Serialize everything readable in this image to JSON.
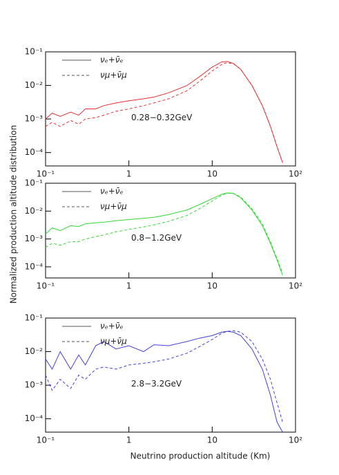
{
  "chart_data": [
    {
      "type": "line",
      "ylabel": "Normalized production altitude distribution",
      "annotation": "0.28−0.32GeV",
      "x": [
        0.1,
        0.12,
        0.15,
        0.2,
        0.25,
        0.3,
        0.4,
        0.5,
        0.7,
        1,
        1.5,
        2,
        3,
        5,
        7,
        10,
        13,
        15,
        18,
        22,
        30,
        40,
        50,
        60,
        70
      ],
      "series": [
        {
          "name": "νₑ+ν̄ₑ",
          "color": "#e83030",
          "linestyle": "solid",
          "values": [
            0.001,
            0.0015,
            0.0012,
            0.0016,
            0.0013,
            0.002,
            0.002,
            0.0025,
            0.003,
            0.0035,
            0.004,
            0.0045,
            0.006,
            0.01,
            0.018,
            0.035,
            0.05,
            0.052,
            0.045,
            0.03,
            0.01,
            0.0025,
            0.0006,
            0.00015,
            5e-05
          ]
        },
        {
          "name": "νμ+ν̄μ",
          "color": "#e83030",
          "linestyle": "dashed",
          "values": [
            0.0006,
            0.0008,
            0.0006,
            0.0009,
            0.0007,
            0.001,
            0.0011,
            0.0013,
            0.0017,
            0.002,
            0.0025,
            0.003,
            0.004,
            0.007,
            0.013,
            0.027,
            0.042,
            0.048,
            0.044,
            0.03,
            0.01,
            0.0025,
            0.0006,
            0.00015,
            5e-05
          ]
        }
      ],
      "xlim": [
        0.1,
        100
      ],
      "ylim": [
        4e-05,
        0.1
      ],
      "log_x": true,
      "log_y": true,
      "legend": "upper left",
      "xticks": [
        {
          "value": 0.1,
          "label": "10⁻¹"
        },
        1,
        10,
        {
          "value": 100,
          "label": "10²"
        }
      ],
      "yticks": [
        {
          "value": 0.1,
          "label": "10⁻¹"
        },
        {
          "value": 0.01,
          "label": "10⁻²"
        },
        {
          "value": 0.001,
          "label": "10⁻³"
        },
        {
          "value": 0.0001,
          "label": "10⁻⁴"
        }
      ]
    },
    {
      "type": "line",
      "annotation": "0.8−1.2GeV",
      "x": [
        0.1,
        0.12,
        0.15,
        0.2,
        0.25,
        0.3,
        0.4,
        0.5,
        0.7,
        1,
        1.5,
        2,
        3,
        5,
        7,
        10,
        13,
        15,
        18,
        22,
        30,
        40,
        50,
        60,
        70
      ],
      "series": [
        {
          "name": "νₑ+ν̄ₑ",
          "color": "#30d830",
          "linestyle": "solid",
          "values": [
            0.0015,
            0.0025,
            0.002,
            0.003,
            0.0028,
            0.0035,
            0.0038,
            0.004,
            0.0045,
            0.005,
            0.0055,
            0.006,
            0.0075,
            0.011,
            0.017,
            0.028,
            0.04,
            0.045,
            0.043,
            0.03,
            0.011,
            0.003,
            0.0007,
            0.00018,
            5e-05
          ]
        },
        {
          "name": "νμ+ν̄μ",
          "color": "#30d830",
          "linestyle": "dashed",
          "values": [
            0.0005,
            0.0007,
            0.0006,
            0.0008,
            0.0008,
            0.001,
            0.0012,
            0.0014,
            0.0018,
            0.0022,
            0.0027,
            0.0032,
            0.0043,
            0.007,
            0.012,
            0.023,
            0.037,
            0.044,
            0.043,
            0.032,
            0.012,
            0.0035,
            0.0008,
            0.0002,
            6e-05
          ]
        }
      ],
      "xlim": [
        0.1,
        100
      ],
      "ylim": [
        4e-05,
        0.1
      ],
      "log_x": true,
      "log_y": true,
      "legend": "upper left",
      "xticks": [
        {
          "value": 0.1,
          "label": "10⁻¹"
        },
        1,
        10,
        {
          "value": 100,
          "label": "10²"
        }
      ],
      "yticks": [
        {
          "value": 0.1,
          "label": "10⁻¹"
        },
        {
          "value": 0.01,
          "label": "10⁻²"
        },
        {
          "value": 0.001,
          "label": "10⁻³"
        },
        {
          "value": 0.0001,
          "label": "10⁻⁴"
        }
      ]
    },
    {
      "type": "line",
      "annotation": "2.8−3.2GeV",
      "xlabel": "Neutrino production altitude (Km)",
      "x": [
        0.1,
        0.12,
        0.15,
        0.2,
        0.25,
        0.3,
        0.4,
        0.5,
        0.7,
        1,
        1.5,
        2,
        3,
        5,
        7,
        10,
        13,
        15,
        18,
        22,
        30,
        40,
        50,
        60,
        70
      ],
      "series": [
        {
          "name": "νₑ+ν̄ₑ",
          "color": "#4040e0",
          "linestyle": "solid",
          "values": [
            0.006,
            0.003,
            0.01,
            0.003,
            0.008,
            0.004,
            0.015,
            0.02,
            0.012,
            0.015,
            0.01,
            0.016,
            0.015,
            0.02,
            0.025,
            0.03,
            0.038,
            0.04,
            0.038,
            0.03,
            0.012,
            0.003,
            0.0005,
            8e-05,
            4e-05
          ]
        },
        {
          "name": "νμ+ν̄μ",
          "color": "#4040e0",
          "linestyle": "dashed",
          "values": [
            0.002,
            0.0007,
            0.0015,
            0.0008,
            0.002,
            0.0015,
            0.003,
            0.0035,
            0.003,
            0.004,
            0.0045,
            0.005,
            0.006,
            0.009,
            0.014,
            0.023,
            0.035,
            0.04,
            0.042,
            0.038,
            0.02,
            0.006,
            0.0015,
            0.0003,
            8e-05
          ]
        }
      ],
      "xlim": [
        0.1,
        100
      ],
      "ylim": [
        4e-05,
        0.1
      ],
      "log_x": true,
      "log_y": true,
      "legend": "upper left",
      "xticks": [
        {
          "value": 0.1,
          "label": "10⁻¹"
        },
        1,
        10,
        {
          "value": 100,
          "label": "10²"
        }
      ],
      "yticks": [
        {
          "value": 0.1,
          "label": "10⁻¹"
        },
        {
          "value": 0.01,
          "label": "10⁻²"
        },
        {
          "value": 0.001,
          "label": "10⁻³"
        },
        {
          "value": 0.0001,
          "label": "10⁻⁴"
        }
      ]
    }
  ]
}
